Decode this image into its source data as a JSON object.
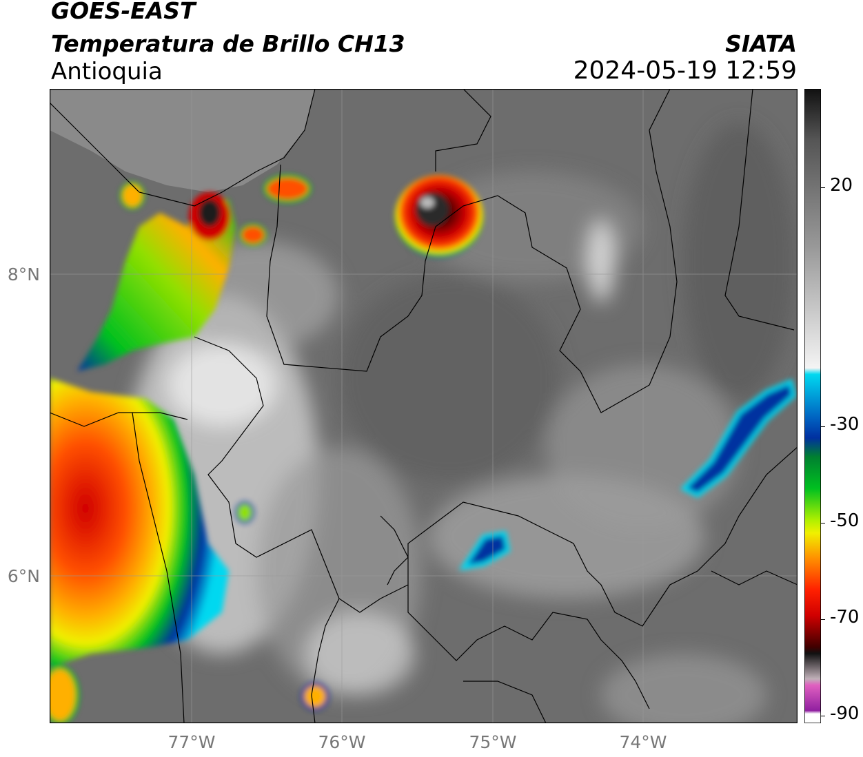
{
  "header": {
    "line1": "GOES-EAST",
    "line2": "Temperatura de Brillo CH13",
    "region": "Antioquia",
    "org": "SIATA",
    "datetime": "2024-05-19 12:59"
  },
  "map": {
    "lat_labels": [
      "8°N",
      "6°N"
    ],
    "lon_labels": [
      "77°W",
      "76°W",
      "75°W",
      "74°W"
    ]
  },
  "colorbar": {
    "labels": [
      "20",
      "-30",
      "-50",
      "-70",
      "-90"
    ],
    "colors": {
      "cold_black": "#111111",
      "gray": "#777777",
      "white": "#f4f4f4",
      "cyan": "#00d8f0",
      "blue": "#0030a0",
      "green": "#00c020",
      "yellow": "#f0f000",
      "orange": "#ff9000",
      "red": "#d00000",
      "magenta": "#d040c0"
    }
  }
}
